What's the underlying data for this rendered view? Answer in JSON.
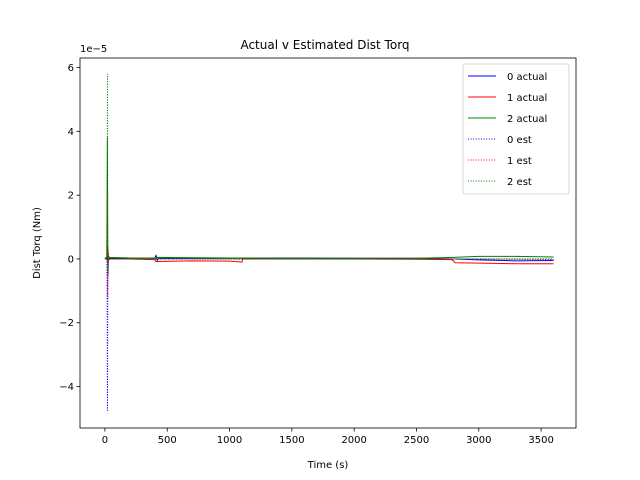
{
  "chart_data": {
    "type": "line",
    "title": "Actual v Estimated Dist Torq",
    "xlabel": "Time (s)",
    "ylabel": "Dist Torq (Nm)",
    "y_offset_label": "1e−5",
    "y_scale": 1e-05,
    "xlim": [
      -200,
      3780
    ],
    "ylim": [
      -5.3,
      6.3
    ],
    "xticks": [
      0,
      500,
      1000,
      1500,
      2000,
      2500,
      3000,
      3500
    ],
    "yticks": [
      -4,
      -2,
      0,
      2,
      4,
      6
    ],
    "xtick_labels": [
      "0",
      "500",
      "1000",
      "1500",
      "2000",
      "2500",
      "3000",
      "3500"
    ],
    "ytick_labels": [
      "−4",
      "−2",
      "0",
      "2",
      "4",
      "6"
    ],
    "grid": false,
    "legend_position": "upper-right",
    "series": [
      {
        "name": "0 actual",
        "color": "#0000ff",
        "style": "solid",
        "points": [
          [
            0,
            0
          ],
          [
            10,
            0.05
          ],
          [
            20,
            -0.02
          ],
          [
            30,
            0.02
          ],
          [
            200,
            0.02
          ],
          [
            400,
            0.02
          ],
          [
            410,
            0.12
          ],
          [
            420,
            -0.05
          ],
          [
            430,
            0.02
          ],
          [
            1000,
            0.02
          ],
          [
            1500,
            0.03
          ],
          [
            2000,
            0.02
          ],
          [
            2500,
            0.02
          ],
          [
            2800,
            0.0
          ],
          [
            3000,
            -0.03
          ],
          [
            3300,
            -0.06
          ],
          [
            3600,
            -0.05
          ]
        ]
      },
      {
        "name": "1 actual",
        "color": "#ff0000",
        "style": "solid",
        "points": [
          [
            0,
            0
          ],
          [
            10,
            0.02
          ],
          [
            20,
            -0.05
          ],
          [
            30,
            0.0
          ],
          [
            200,
            0.0
          ],
          [
            400,
            -0.02
          ],
          [
            410,
            -0.08
          ],
          [
            430,
            -0.08
          ],
          [
            700,
            -0.06
          ],
          [
            1000,
            -0.07
          ],
          [
            1100,
            -0.1
          ],
          [
            1105,
            0.0
          ],
          [
            1500,
            0.0
          ],
          [
            2000,
            0.0
          ],
          [
            2500,
            -0.01
          ],
          [
            2780,
            -0.02
          ],
          [
            2800,
            -0.07
          ],
          [
            2810,
            -0.12
          ],
          [
            3000,
            -0.13
          ],
          [
            3300,
            -0.15
          ],
          [
            3600,
            -0.15
          ]
        ]
      },
      {
        "name": "2 actual",
        "color": "#008000",
        "style": "solid",
        "points": [
          [
            0,
            0
          ],
          [
            15,
            0.05
          ],
          [
            20,
            3.8
          ],
          [
            22,
            0.2
          ],
          [
            25,
            -0.5
          ],
          [
            28,
            0.1
          ],
          [
            35,
            0.05
          ],
          [
            200,
            0.03
          ],
          [
            400,
            0.03
          ],
          [
            420,
            0.05
          ],
          [
            1000,
            0.03
          ],
          [
            1500,
            0.02
          ],
          [
            2000,
            0.02
          ],
          [
            2500,
            0.02
          ],
          [
            2800,
            0.05
          ],
          [
            3000,
            0.08
          ],
          [
            3300,
            0.08
          ],
          [
            3600,
            0.06
          ]
        ]
      },
      {
        "name": "0 est",
        "color": "#0000ff",
        "style": "dotted",
        "points": [
          [
            15,
            0
          ],
          [
            18,
            -1.5
          ],
          [
            20,
            -4.75
          ],
          [
            22,
            -2.0
          ],
          [
            25,
            0.3
          ],
          [
            28,
            -0.1
          ],
          [
            35,
            0.0
          ],
          [
            200,
            0.0
          ],
          [
            1000,
            0.0
          ],
          [
            2000,
            0.0
          ],
          [
            3000,
            0.0
          ],
          [
            3600,
            -0.02
          ]
        ]
      },
      {
        "name": "1 est",
        "color": "#ff0000",
        "style": "dotted",
        "points": [
          [
            15,
            0
          ],
          [
            18,
            0.8
          ],
          [
            20,
            2.1
          ],
          [
            22,
            -1.2
          ],
          [
            25,
            0.4
          ],
          [
            28,
            -0.1
          ],
          [
            35,
            0.0
          ],
          [
            200,
            0.0
          ],
          [
            1000,
            0.0
          ],
          [
            2000,
            0.0
          ],
          [
            3000,
            0.0
          ],
          [
            3600,
            0.0
          ]
        ]
      },
      {
        "name": "2 est",
        "color": "#008000",
        "style": "dotted",
        "points": [
          [
            15,
            0
          ],
          [
            18,
            1.5
          ],
          [
            20,
            5.8
          ],
          [
            22,
            2.5
          ],
          [
            25,
            -0.4
          ],
          [
            28,
            0.2
          ],
          [
            35,
            0.0
          ],
          [
            200,
            0.0
          ],
          [
            1000,
            0.0
          ],
          [
            2000,
            0.0
          ],
          [
            3000,
            0.0
          ],
          [
            3600,
            0.0
          ]
        ]
      }
    ]
  }
}
